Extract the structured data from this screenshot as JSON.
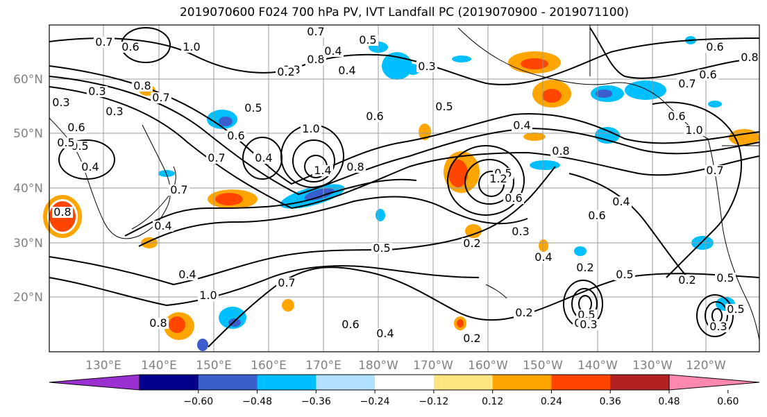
{
  "title": "2019070600 F024 700 hPa PV, IVT Landfall PC (2019070900 - 2019071100)",
  "map": {
    "lat_labels": [
      "60°N",
      "50°N",
      "40°N",
      "30°N",
      "20°N"
    ],
    "lon_labels": [
      "130°E",
      "140°E",
      "150°E",
      "160°E",
      "170°E",
      "180°W",
      "170°W",
      "160°W",
      "150°W",
      "140°W",
      "130°W",
      "120°W"
    ],
    "contour_labels": [
      "0.7",
      "0.6",
      "1.0",
      "0.8",
      "0.4",
      "0.5",
      "0.3",
      "0.8",
      "0.7",
      "0.6",
      "0.5",
      "0.4",
      "0.3",
      "0.7",
      "0.6",
      "0.5",
      "0.4",
      "0.3",
      "1.0",
      "0.8",
      "0.7",
      "0.4",
      "0.5",
      "0.6",
      "0.7",
      "0.5",
      "0.4",
      "1.0",
      "0.8",
      "0.6",
      "0.4",
      "0.2",
      "0.3",
      "0.4",
      "0.6",
      "0.2",
      "0.2",
      "0.5",
      "0.3",
      "0.4",
      "0.2",
      "0.2",
      "0.5",
      "0.4",
      "0.3",
      "0.2",
      "1.4",
      "1.2",
      "0.8",
      "0.6",
      "0.5",
      "0.8",
      "0.7",
      "0.5",
      "0.4",
      "0.3",
      "0.6",
      "1.0",
      "0.7",
      "0.8",
      "0.6",
      "0.7",
      "0.5",
      "0.6",
      "0.4",
      "0.2",
      "0.5",
      "0.3"
    ],
    "colors": {
      "contour": "#000000",
      "grid": "#9a9a9a",
      "coast": "#000000"
    }
  },
  "colorbar": {
    "ticks": [
      "−0.60",
      "−0.48",
      "−0.36",
      "−0.24",
      "−0.12",
      "0.12",
      "0.24",
      "0.36",
      "0.48",
      "0.60"
    ],
    "colors": [
      "#9b30d0",
      "#00008b",
      "#3a5fcd",
      "#00bfff",
      "#b2e0ff",
      "#ffffff",
      "#ffe680",
      "#ffa500",
      "#ff4500",
      "#b22222",
      "#ff88b0"
    ]
  }
}
